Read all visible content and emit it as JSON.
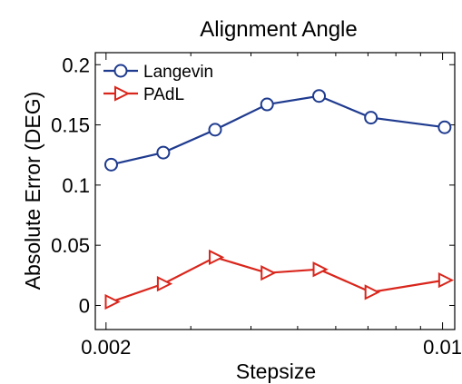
{
  "chart_data": {
    "type": "line",
    "title": "Alignment Angle",
    "xlabel": "Stepsize",
    "ylabel": "Absolute Error (DEG)",
    "x_scale": "log",
    "xlim": [
      0.0019,
      0.0106
    ],
    "ylim": [
      -0.02,
      0.21
    ],
    "x_ticks": [
      0.002,
      0.01
    ],
    "x_tick_labels": [
      "0.002",
      "0.01"
    ],
    "x_minor_ticks": [
      0.003,
      0.004,
      0.005,
      0.006,
      0.007,
      0.008,
      0.009
    ],
    "y_ticks": [
      0,
      0.05,
      0.1,
      0.15,
      0.2
    ],
    "y_tick_labels": [
      "0",
      "0.05",
      "0.1",
      "0.15",
      "0.2"
    ],
    "grid": false,
    "legend_position": "top-left",
    "x": [
      0.00205,
      0.00263,
      0.00337,
      0.00432,
      0.00554,
      0.0071,
      0.0101
    ],
    "series": [
      {
        "name": "Langevin",
        "color": "#1f3b8f",
        "marker": "circle",
        "values": [
          0.117,
          0.127,
          0.146,
          0.167,
          0.174,
          0.156,
          0.148
        ]
      },
      {
        "name": "PAdL",
        "color": "#d9261c",
        "marker": "triangle-right",
        "values": [
          0.003,
          0.018,
          0.04,
          0.027,
          0.03,
          0.011,
          0.021
        ]
      }
    ]
  }
}
